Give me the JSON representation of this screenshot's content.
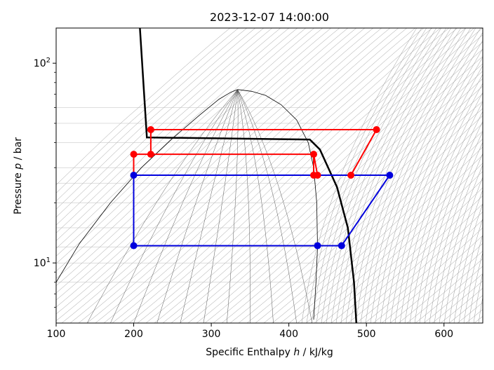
{
  "chart_data": {
    "type": "line",
    "title": "2023-12-07 14:00:00",
    "xlabel_parts": [
      "Specific Enthalpy ",
      "h",
      " / kJ/kg"
    ],
    "ylabel_parts": [
      "Pressure ",
      "p",
      " / bar"
    ],
    "xlim": [
      100,
      650
    ],
    "ylim": [
      5,
      150
    ],
    "yscale": "log",
    "x_ticks": [
      100,
      200,
      300,
      400,
      500,
      600
    ],
    "y_ticks": [
      {
        "value": 10,
        "base": "10",
        "exp": "1"
      },
      {
        "value": 100,
        "base": "10",
        "exp": "2"
      }
    ],
    "grid": false,
    "colors": {
      "high_cycle": "#ff0000",
      "low_cycle": "#0000dd",
      "boundary": "#000000",
      "isolines": "#999999"
    },
    "saturation_dome": {
      "liquid": [
        [
          100,
          8.0
        ],
        [
          130,
          12.5
        ],
        [
          170,
          20
        ],
        [
          210,
          30
        ],
        [
          250,
          42
        ],
        [
          285,
          55
        ],
        [
          310,
          66
        ],
        [
          325,
          71.5
        ],
        [
          334,
          73.8
        ]
      ],
      "vapor": [
        [
          334,
          73.8
        ],
        [
          352,
          72.3
        ],
        [
          370,
          69
        ],
        [
          390,
          62
        ],
        [
          410,
          52
        ],
        [
          425,
          40
        ],
        [
          432,
          30
        ],
        [
          436,
          20
        ],
        [
          437,
          12
        ],
        [
          435,
          8
        ],
        [
          432,
          5.2
        ]
      ]
    },
    "process_boundary": [
      [
        208,
        150
      ],
      [
        217,
        42.5
      ],
      [
        427,
        41.5
      ],
      [
        440,
        37
      ],
      [
        462,
        24
      ],
      [
        476,
        15
      ],
      [
        484,
        8
      ],
      [
        487,
        5
      ]
    ],
    "series": [
      {
        "color": "#ff0000",
        "points": [
          [
            513,
            46.5
          ],
          [
            222,
            46.5
          ],
          [
            222,
            35
          ],
          [
            200,
            35
          ],
          [
            200,
            27.5
          ],
          [
            432,
            27.5
          ],
          [
            432,
            35
          ],
          [
            222,
            35
          ],
          [
            222,
            35
          ],
          [
            432,
            35
          ],
          [
            437,
            27.5
          ],
          [
            480,
            27.5
          ],
          [
            513,
            46.5
          ]
        ]
      },
      {
        "color": "#0000dd",
        "points": [
          [
            530,
            27.5
          ],
          [
            200,
            27.5
          ],
          [
            200,
            12.2
          ],
          [
            437,
            12.2
          ],
          [
            468,
            12.2
          ],
          [
            530,
            27.5
          ]
        ]
      }
    ],
    "markers": [
      {
        "color": "#ff0000",
        "points": [
          [
            222,
            46.5
          ],
          [
            513,
            46.5
          ],
          [
            200,
            35
          ],
          [
            222,
            35
          ],
          [
            432,
            35
          ],
          [
            432,
            27.5
          ],
          [
            437,
            27.5
          ],
          [
            480,
            27.5
          ]
        ]
      },
      {
        "color": "#0000dd",
        "points": [
          [
            200,
            27.5
          ],
          [
            530,
            27.5
          ],
          [
            200,
            12.2
          ],
          [
            437,
            12.2
          ],
          [
            468,
            12.2
          ]
        ]
      }
    ]
  }
}
